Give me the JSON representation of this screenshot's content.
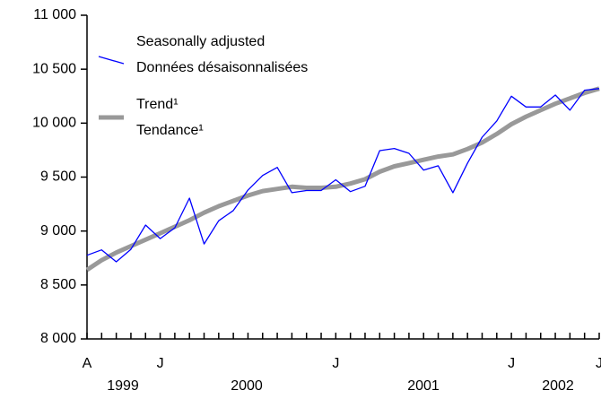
{
  "chart_data": {
    "type": "line",
    "categories": [
      "A",
      null,
      null,
      null,
      null,
      "J",
      null,
      null,
      null,
      null,
      null,
      null,
      null,
      null,
      null,
      null,
      null,
      "J",
      null,
      null,
      null,
      null,
      null,
      null,
      null,
      null,
      null,
      null,
      null,
      "J",
      null,
      null,
      null,
      null,
      null,
      "J"
    ],
    "year_labels": [
      "1999",
      "2000",
      "2001",
      "2002"
    ],
    "series": [
      {
        "name": [
          "Seasonally adjusted",
          "Données désaisonnalisées"
        ],
        "color": "#0000ff",
        "values": [
          8775,
          8825,
          8715,
          8830,
          9055,
          8930,
          9030,
          9305,
          8880,
          9095,
          9190,
          9380,
          9515,
          9590,
          9355,
          9375,
          9375,
          9475,
          9365,
          9415,
          9745,
          9765,
          9720,
          9565,
          9605,
          9355,
          9630,
          9870,
          10020,
          10250,
          10150,
          10150,
          10260,
          10120,
          10305,
          10320
        ]
      },
      {
        "name": [
          "Trend¹",
          "Tendance¹"
        ],
        "color": "#999999",
        "values": [
          8640,
          8730,
          8800,
          8860,
          8920,
          8980,
          9040,
          9100,
          9170,
          9230,
          9280,
          9330,
          9370,
          9390,
          9410,
          9400,
          9400,
          9410,
          9440,
          9480,
          9550,
          9600,
          9630,
          9660,
          9690,
          9710,
          9760,
          9820,
          9900,
          9990,
          10060,
          10120,
          10180,
          10230,
          10280,
          10320
        ]
      }
    ],
    "ylim": [
      8000,
      11000
    ],
    "yticks": [
      {
        "value": 8000,
        "label": "8 000"
      },
      {
        "value": 8500,
        "label": "8 500"
      },
      {
        "value": 9000,
        "label": "9 000"
      },
      {
        "value": 9500,
        "label": "9 500"
      },
      {
        "value": 10000,
        "label": "10 000"
      },
      {
        "value": 10500,
        "label": "10 500"
      },
      {
        "value": 11000,
        "label": "11 000"
      }
    ]
  }
}
